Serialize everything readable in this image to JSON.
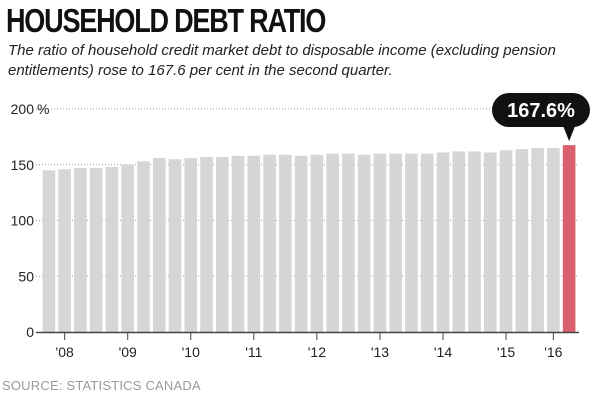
{
  "title": "HOUSEHOLD DEBT RATIO",
  "subtitle": "The ratio of household credit market debt to disposable income (excluding pension entitlements) rose to 167.6 per cent in the second quarter.",
  "source": "SOURCE: STATISTICS CANADA",
  "colors": {
    "bar": "#d6d6d6",
    "highlight": "#d9606c",
    "callout": "#111111",
    "grid": "#9a9a9a",
    "axis": "#444444"
  },
  "chart_data": {
    "type": "bar",
    "title": "HOUSEHOLD DEBT RATIO",
    "unit": "%",
    "ylim": [
      0,
      200
    ],
    "yticks": [
      0,
      50,
      100,
      150,
      200
    ],
    "ytick_labels": [
      "0",
      "50",
      "100",
      "150",
      "200"
    ],
    "grid": "dotted horizontal",
    "xtick_labels": [
      {
        "label": "'08",
        "bar": 1
      },
      {
        "label": "'09",
        "bar": 5
      },
      {
        "label": "'10",
        "bar": 9
      },
      {
        "label": "'11",
        "bar": 13
      },
      {
        "label": "'12",
        "bar": 17
      },
      {
        "label": "'13",
        "bar": 21
      },
      {
        "label": "'14",
        "bar": 25
      },
      {
        "label": "'15",
        "bar": 29
      },
      {
        "label": "'16",
        "bar": 32
      }
    ],
    "values": [
      145,
      146,
      147,
      147,
      148,
      150,
      153,
      156,
      155,
      156,
      157,
      157,
      158,
      158,
      159,
      159,
      158,
      159,
      160,
      160,
      159,
      160,
      160,
      160,
      160,
      161,
      162,
      162,
      161,
      163,
      164,
      165,
      165,
      167.6
    ],
    "highlight_index": 33,
    "callout": "167.6%"
  }
}
